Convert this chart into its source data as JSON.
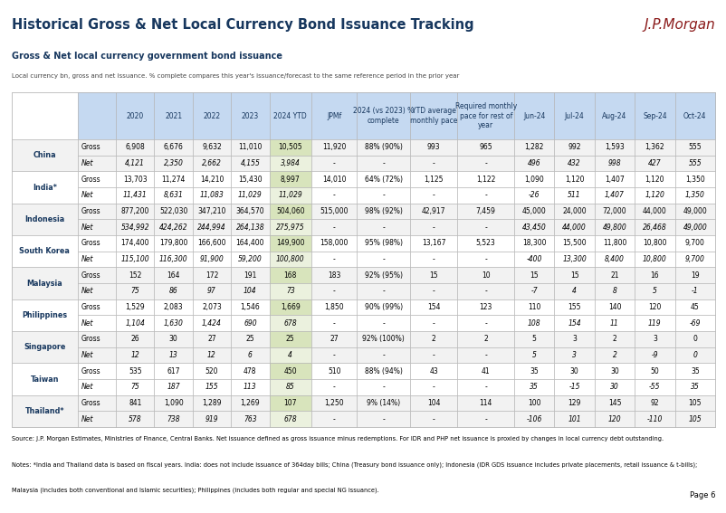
{
  "title": "Historical Gross & Net Local Currency Bond Issuance Tracking",
  "subtitle": "Gross & Net local currency government bond issuance",
  "subtitle2": "Local currency bn, gross and net issuance. % complete compares this year's issuance/forecast to the same reference period in the prior year",
  "jpmorgan_logo": "J.P.Morgan",
  "page": "Page 6",
  "source_text": "Source: J.P. Morgan Estimates, Ministries of Finance, Central Banks. Net issuance defined as gross issuance minus redemptions. For IDR and PHP net issuance is proxied by changes in local currency debt outstanding.",
  "notes_text": "Notes: *India and Thailand data is based on fiscal years. India: does not include issuance of 364day bills; China (Treasury bond issuance only); Indonesia (IDR GDS issuance includes private placements, retail issuance & t-bills);",
  "notes_text2": "Malaysia (includes both conventional and Islamic securities); Philippines (includes both regular and special NG issuance).",
  "rows": [
    {
      "country": "China",
      "gross": [
        "6,908",
        "6,676",
        "9,632",
        "11,010",
        "10,505",
        "11,920",
        "88% (90%)",
        "993",
        "965",
        "1,282",
        "992",
        "1,593",
        "1,362",
        "555"
      ],
      "net": [
        "4,121",
        "2,350",
        "2,662",
        "4,155",
        "3,984",
        "-",
        "-",
        "-",
        "-",
        "496",
        "432",
        "998",
        "427",
        "555"
      ]
    },
    {
      "country": "India*",
      "gross": [
        "13,703",
        "11,274",
        "14,210",
        "15,430",
        "8,997",
        "14,010",
        "64% (72%)",
        "1,125",
        "1,122",
        "1,090",
        "1,120",
        "1,407",
        "1,120",
        "1,350"
      ],
      "net": [
        "11,431",
        "8,631",
        "11,083",
        "11,029",
        "11,029",
        "-",
        "-",
        "-",
        "-",
        "-26",
        "511",
        "1,407",
        "1,120",
        "1,350"
      ]
    },
    {
      "country": "Indonesia",
      "gross": [
        "877,200",
        "522,030",
        "347,210",
        "364,570",
        "504,060",
        "515,000",
        "98% (92%)",
        "42,917",
        "7,459",
        "45,000",
        "24,000",
        "72,000",
        "44,000",
        "49,000"
      ],
      "net": [
        "534,992",
        "424,262",
        "244,994",
        "264,138",
        "275,975",
        "-",
        "-",
        "-",
        "-",
        "43,450",
        "44,000",
        "49,800",
        "26,468",
        "49,000"
      ]
    },
    {
      "country": "South Korea",
      "gross": [
        "174,400",
        "179,800",
        "166,600",
        "164,400",
        "149,900",
        "158,000",
        "95% (98%)",
        "13,167",
        "5,523",
        "18,300",
        "15,500",
        "11,800",
        "10,800",
        "9,700"
      ],
      "net": [
        "115,100",
        "116,300",
        "91,900",
        "59,200",
        "100,800",
        "-",
        "-",
        "-",
        "-",
        "-400",
        "13,300",
        "8,400",
        "10,800",
        "9,700"
      ]
    },
    {
      "country": "Malaysia",
      "gross": [
        "152",
        "164",
        "172",
        "191",
        "168",
        "183",
        "92% (95%)",
        "15",
        "10",
        "15",
        "15",
        "21",
        "16",
        "19"
      ],
      "net": [
        "75",
        "86",
        "97",
        "104",
        "73",
        "-",
        "-",
        "-",
        "-",
        "-7",
        "4",
        "8",
        "5",
        "-1"
      ]
    },
    {
      "country": "Philippines",
      "gross": [
        "1,529",
        "2,083",
        "2,073",
        "1,546",
        "1,669",
        "1,850",
        "90% (99%)",
        "154",
        "123",
        "110",
        "155",
        "140",
        "120",
        "45"
      ],
      "net": [
        "1,104",
        "1,630",
        "1,424",
        "690",
        "678",
        "-",
        "-",
        "-",
        "-",
        "108",
        "154",
        "11",
        "119",
        "-69"
      ]
    },
    {
      "country": "Singapore",
      "gross": [
        "26",
        "30",
        "27",
        "25",
        "25",
        "27",
        "92% (100%)",
        "2",
        "2",
        "5",
        "3",
        "2",
        "3",
        "0"
      ],
      "net": [
        "12",
        "13",
        "12",
        "6",
        "4",
        "-",
        "-",
        "-",
        "-",
        "5",
        "3",
        "2",
        "-9",
        "0"
      ]
    },
    {
      "country": "Taiwan",
      "gross": [
        "535",
        "617",
        "520",
        "478",
        "450",
        "510",
        "88% (94%)",
        "43",
        "41",
        "35",
        "30",
        "30",
        "50",
        "35"
      ],
      "net": [
        "75",
        "187",
        "155",
        "113",
        "85",
        "-",
        "-",
        "-",
        "-",
        "35",
        "-15",
        "30",
        "-55",
        "35"
      ]
    },
    {
      "country": "Thailand*",
      "gross": [
        "841",
        "1,090",
        "1,289",
        "1,269",
        "107",
        "1,250",
        "9% (14%)",
        "104",
        "114",
        "100",
        "129",
        "145",
        "92",
        "105"
      ],
      "net": [
        "578",
        "738",
        "919",
        "763",
        "678",
        "-",
        "-",
        "-",
        "-",
        "-106",
        "101",
        "120",
        "-110",
        "105"
      ]
    }
  ],
  "header_bg": "#c5d9f1",
  "ytd_header_bg": "#c5d9f1",
  "ytd_bg_gross": "#d8e4bc",
  "ytd_bg_net": "#ebf1de",
  "row_bg_even": "#f2f2f2",
  "row_bg_odd": "#ffffff",
  "border_color": "#b0b0b0",
  "header_text_color": "#17375e",
  "country_text_color": "#17375e",
  "title_color": "#17375e",
  "subtitle_color": "#17375e"
}
